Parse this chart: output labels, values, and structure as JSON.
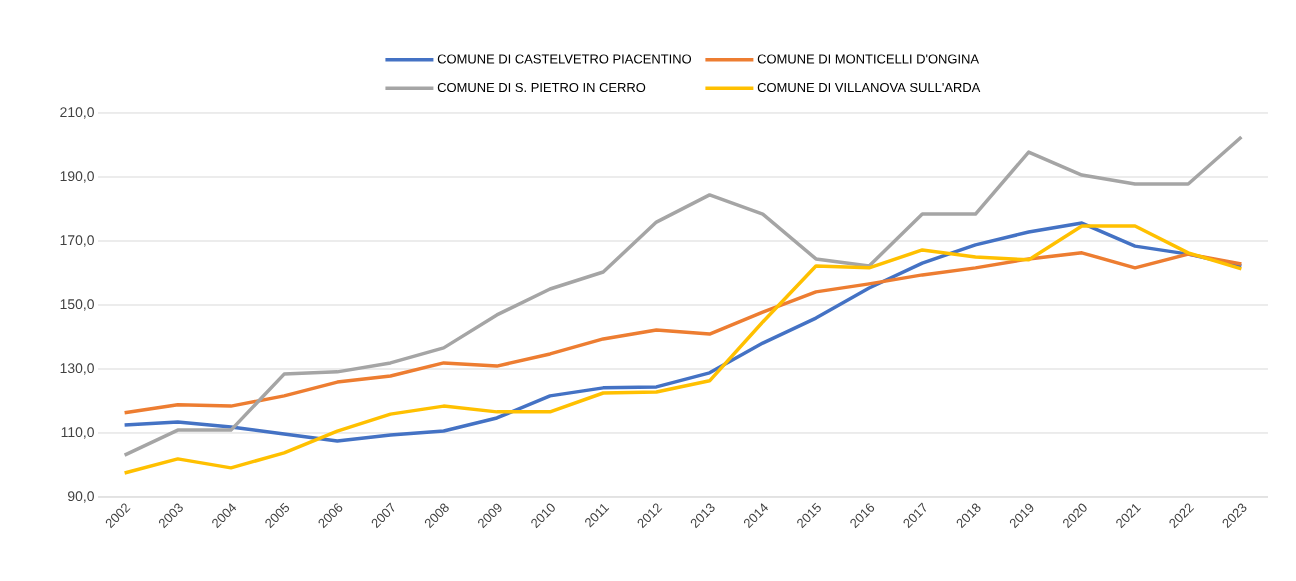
{
  "chart_data": {
    "type": "line",
    "categories": [
      "2002",
      "2003",
      "2004",
      "2005",
      "2006",
      "2007",
      "2008",
      "2009",
      "2010",
      "2011",
      "2012",
      "2013",
      "2014",
      "2015",
      "2016",
      "2017",
      "2018",
      "2019",
      "2020",
      "2021",
      "2022",
      "2023"
    ],
    "series": [
      {
        "name": "COMUNE DI CASTELVETRO PIACENTINO",
        "color": "#4472c4",
        "values": [
          112.5,
          113.4,
          111.9,
          109.7,
          107.5,
          109.4,
          110.6,
          114.7,
          121.6,
          124.1,
          124.4,
          128.8,
          138.1,
          145.9,
          155.3,
          163.1,
          168.8,
          172.8,
          175.6,
          168.4,
          165.9,
          162.2
        ]
      },
      {
        "name": "COMUNE DI MONTICELLI D'ONGINA",
        "color": "#ed7d31",
        "values": [
          116.3,
          118.8,
          118.4,
          121.6,
          125.9,
          127.8,
          131.9,
          130.9,
          134.7,
          139.4,
          142.2,
          140.9,
          147.8,
          154.1,
          156.6,
          159.4,
          161.6,
          164.4,
          166.3,
          161.6,
          165.9,
          162.8
        ]
      },
      {
        "name": "COMUNE DI S. PIETRO IN CERRO",
        "color": "#a5a5a5",
        "values": [
          103.1,
          110.9,
          110.9,
          128.4,
          129.1,
          131.9,
          136.6,
          146.9,
          155.0,
          160.3,
          175.9,
          184.4,
          178.4,
          164.4,
          162.2,
          178.4,
          178.4,
          197.8,
          190.6,
          187.8,
          187.8,
          202.5
        ]
      },
      {
        "name": "COMUNE DI VILLANOVA SULL'ARDA",
        "color": "#ffc000",
        "values": [
          97.5,
          101.9,
          99.1,
          103.8,
          110.6,
          115.9,
          118.4,
          116.6,
          116.6,
          122.5,
          122.8,
          126.3,
          144.7,
          162.2,
          161.6,
          167.2,
          165.0,
          164.1,
          174.7,
          174.7,
          166.3,
          161.3
        ]
      }
    ],
    "ylim": [
      90,
      210
    ],
    "yticks": [
      {
        "value": 90,
        "label": "90,0"
      },
      {
        "value": 110,
        "label": "110,0"
      },
      {
        "value": 130,
        "label": "130,0"
      },
      {
        "value": 150,
        "label": "150,0"
      },
      {
        "value": 170,
        "label": "170,0"
      },
      {
        "value": 190,
        "label": "190,0"
      },
      {
        "value": 210,
        "label": "210,0"
      }
    ],
    "grid": "y",
    "legend": "top",
    "marker": "none",
    "line_style": "solid"
  }
}
